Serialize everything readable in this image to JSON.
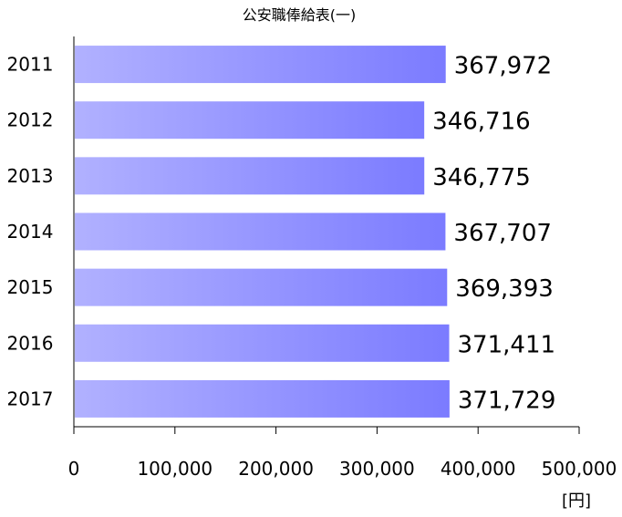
{
  "chart_data": {
    "type": "bar",
    "orientation": "horizontal",
    "title": "公安職俸給表(一)",
    "categories": [
      "2011",
      "2012",
      "2013",
      "2014",
      "2015",
      "2016",
      "2017"
    ],
    "values": [
      367972,
      346716,
      346775,
      367707,
      369393,
      371411,
      371729
    ],
    "value_labels": [
      "367,972",
      "346,716",
      "346,775",
      "367,707",
      "369,393",
      "371,411",
      "371,729"
    ],
    "xlim": [
      0,
      500000
    ],
    "x_ticks": [
      "0",
      "100,000",
      "200,000",
      "300,000",
      "400,000",
      "500,000"
    ],
    "x_tick_values": [
      0,
      100000,
      200000,
      300000,
      400000,
      500000
    ],
    "unit_label": "[円]",
    "grid": false,
    "colors": {
      "bar_start": "#b1b1ff",
      "bar_end": "#7b7bff",
      "axis": "#000000"
    }
  }
}
